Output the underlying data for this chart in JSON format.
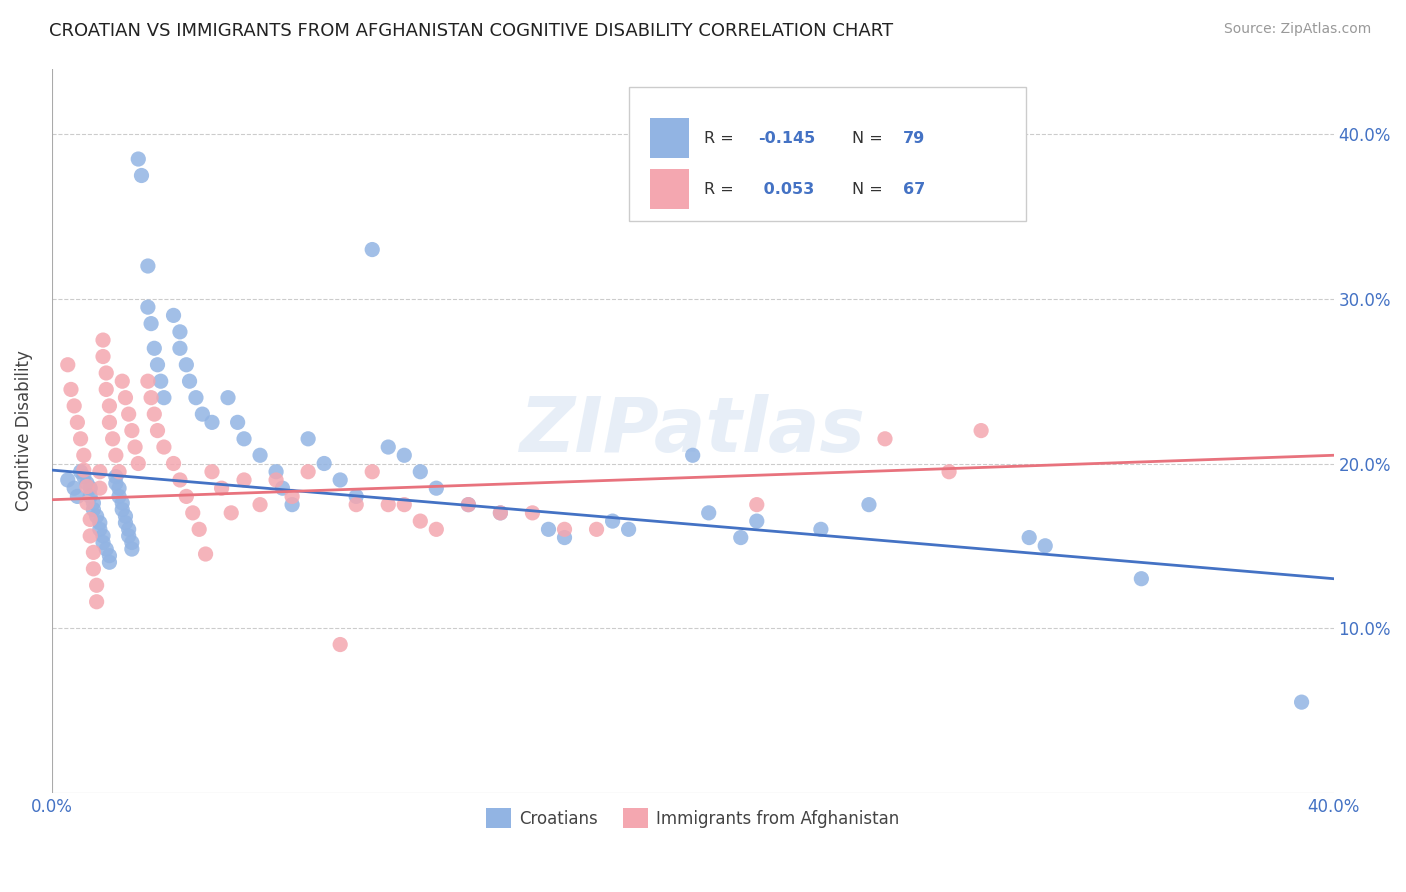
{
  "title": "CROATIAN VS IMMIGRANTS FROM AFGHANISTAN COGNITIVE DISABILITY CORRELATION CHART",
  "source": "Source: ZipAtlas.com",
  "ylabel": "Cognitive Disability",
  "x_min": 0.0,
  "x_max": 0.4,
  "y_min": 0.0,
  "y_max": 0.44,
  "color_blue": "#92b4e3",
  "color_pink": "#f4a7b0",
  "line_blue": "#4472c4",
  "line_pink": "#e8727d",
  "watermark": "ZIPatlas",
  "legend_label1": "Croatians",
  "legend_label2": "Immigrants from Afghanistan",
  "blue_line_x0": 0.0,
  "blue_line_y0": 0.196,
  "blue_line_x1": 0.4,
  "blue_line_y1": 0.13,
  "pink_line_x0": 0.0,
  "pink_line_y0": 0.178,
  "pink_line_x1": 0.4,
  "pink_line_y1": 0.205,
  "blue_scatter_x": [
    0.005,
    0.007,
    0.008,
    0.009,
    0.01,
    0.011,
    0.012,
    0.012,
    0.013,
    0.013,
    0.014,
    0.015,
    0.015,
    0.016,
    0.016,
    0.017,
    0.018,
    0.018,
    0.02,
    0.02,
    0.021,
    0.021,
    0.022,
    0.022,
    0.023,
    0.023,
    0.024,
    0.024,
    0.025,
    0.025,
    0.027,
    0.028,
    0.03,
    0.03,
    0.031,
    0.032,
    0.033,
    0.034,
    0.035,
    0.038,
    0.04,
    0.04,
    0.042,
    0.043,
    0.045,
    0.047,
    0.05,
    0.055,
    0.058,
    0.06,
    0.065,
    0.07,
    0.072,
    0.075,
    0.08,
    0.085,
    0.09,
    0.095,
    0.1,
    0.105,
    0.11,
    0.115,
    0.12,
    0.13,
    0.14,
    0.155,
    0.16,
    0.175,
    0.18,
    0.2,
    0.205,
    0.215,
    0.22,
    0.24,
    0.255,
    0.305,
    0.31,
    0.34,
    0.39
  ],
  "blue_scatter_y": [
    0.19,
    0.185,
    0.18,
    0.195,
    0.192,
    0.188,
    0.185,
    0.18,
    0.176,
    0.172,
    0.168,
    0.164,
    0.16,
    0.156,
    0.152,
    0.148,
    0.144,
    0.14,
    0.192,
    0.188,
    0.185,
    0.18,
    0.176,
    0.172,
    0.168,
    0.164,
    0.16,
    0.156,
    0.152,
    0.148,
    0.385,
    0.375,
    0.32,
    0.295,
    0.285,
    0.27,
    0.26,
    0.25,
    0.24,
    0.29,
    0.28,
    0.27,
    0.26,
    0.25,
    0.24,
    0.23,
    0.225,
    0.24,
    0.225,
    0.215,
    0.205,
    0.195,
    0.185,
    0.175,
    0.215,
    0.2,
    0.19,
    0.18,
    0.33,
    0.21,
    0.205,
    0.195,
    0.185,
    0.175,
    0.17,
    0.16,
    0.155,
    0.165,
    0.16,
    0.205,
    0.17,
    0.155,
    0.165,
    0.16,
    0.175,
    0.155,
    0.15,
    0.13,
    0.055
  ],
  "pink_scatter_x": [
    0.005,
    0.006,
    0.007,
    0.008,
    0.009,
    0.01,
    0.01,
    0.011,
    0.011,
    0.012,
    0.012,
    0.013,
    0.013,
    0.014,
    0.014,
    0.015,
    0.015,
    0.016,
    0.016,
    0.017,
    0.017,
    0.018,
    0.018,
    0.019,
    0.02,
    0.021,
    0.022,
    0.023,
    0.024,
    0.025,
    0.026,
    0.027,
    0.03,
    0.031,
    0.032,
    0.033,
    0.035,
    0.038,
    0.04,
    0.042,
    0.044,
    0.046,
    0.048,
    0.05,
    0.053,
    0.056,
    0.06,
    0.065,
    0.07,
    0.075,
    0.08,
    0.09,
    0.095,
    0.1,
    0.105,
    0.11,
    0.115,
    0.12,
    0.13,
    0.14,
    0.15,
    0.16,
    0.17,
    0.22,
    0.26,
    0.28,
    0.29
  ],
  "pink_scatter_y": [
    0.26,
    0.245,
    0.235,
    0.225,
    0.215,
    0.205,
    0.196,
    0.186,
    0.176,
    0.166,
    0.156,
    0.146,
    0.136,
    0.126,
    0.116,
    0.195,
    0.185,
    0.275,
    0.265,
    0.255,
    0.245,
    0.235,
    0.225,
    0.215,
    0.205,
    0.195,
    0.25,
    0.24,
    0.23,
    0.22,
    0.21,
    0.2,
    0.25,
    0.24,
    0.23,
    0.22,
    0.21,
    0.2,
    0.19,
    0.18,
    0.17,
    0.16,
    0.145,
    0.195,
    0.185,
    0.17,
    0.19,
    0.175,
    0.19,
    0.18,
    0.195,
    0.09,
    0.175,
    0.195,
    0.175,
    0.175,
    0.165,
    0.16,
    0.175,
    0.17,
    0.17,
    0.16,
    0.16,
    0.175,
    0.215,
    0.195,
    0.22
  ]
}
